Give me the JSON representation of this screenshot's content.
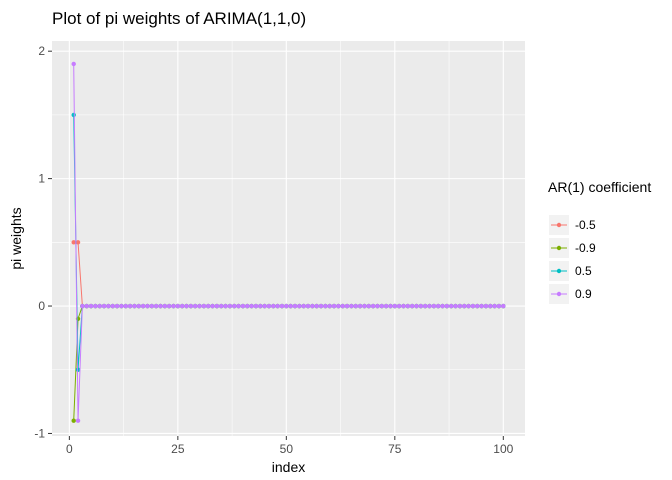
{
  "chart_data": {
    "type": "line",
    "title": "Plot of pi weights of ARIMA(1,1,0)",
    "xlabel": "index",
    "ylabel": "pi weights",
    "xlim": [
      -4,
      105
    ],
    "ylim": [
      -1.02,
      2.08
    ],
    "x_ticks": [
      0,
      25,
      50,
      75,
      100
    ],
    "x_tick_labels": [
      "0",
      "25",
      "50",
      "75",
      "100"
    ],
    "y_ticks": [
      -1,
      0,
      1,
      2
    ],
    "y_tick_labels": [
      "-1",
      "0",
      "1",
      "2"
    ],
    "grid": true,
    "x_range": [
      1,
      100
    ],
    "legend": {
      "title": "AR(1) coefficient",
      "position": "right"
    },
    "series": [
      {
        "name": "-0.5",
        "color": "#F8766D",
        "head": [
          0.5,
          0.5
        ],
        "tail": 0
      },
      {
        "name": "-0.9",
        "color": "#7CAE00",
        "head": [
          -0.9,
          -0.1
        ],
        "tail": 0
      },
      {
        "name": "0.5",
        "color": "#00BFC4",
        "head": [
          1.5,
          -0.5
        ],
        "tail": 0
      },
      {
        "name": "0.9",
        "color": "#C77CFF",
        "head": [
          1.9,
          -0.9
        ],
        "tail": 0
      }
    ]
  }
}
